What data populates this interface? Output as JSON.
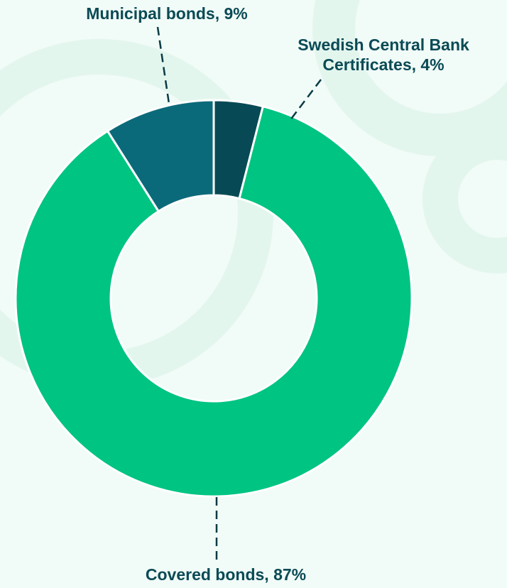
{
  "chart_data": {
    "type": "pie",
    "donut": true,
    "title": "",
    "slices": [
      {
        "label": "Swedish Central Bank Certificates",
        "value": 4,
        "color": "#074a55"
      },
      {
        "label": "Covered bonds",
        "value": 87,
        "color": "#00c482"
      },
      {
        "label": "Municipal bonds",
        "value": 9,
        "color": "#0b6a7a"
      }
    ],
    "labels": {
      "municipal": "Municipal bonds, 9%",
      "certificates_line1": "Swedish Central Bank",
      "certificates_line2": "Certificates, 4%",
      "covered": "Covered bonds, 87%"
    },
    "start_angle_deg": 0,
    "direction": "clockwise"
  },
  "colors": {
    "background": "#f1fbf7",
    "label_text": "#0a4a55",
    "leader_line": "#0a3b44"
  }
}
